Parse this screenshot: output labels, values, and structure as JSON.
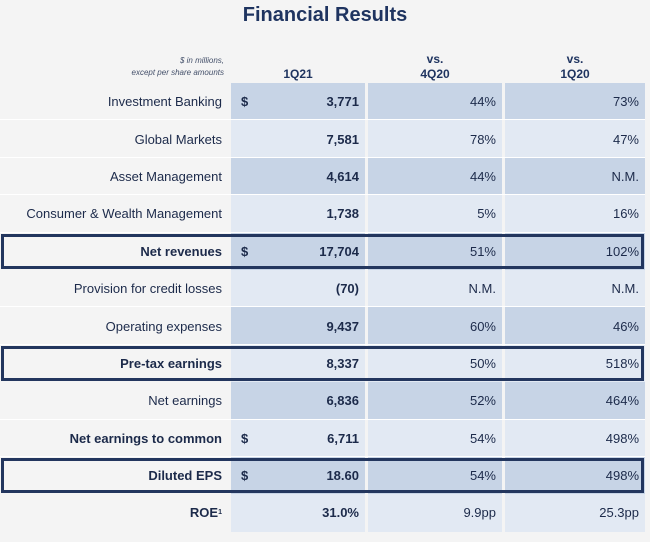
{
  "title": "Financial Results",
  "header": {
    "note_line1": "$ in millions,",
    "note_line2": "except per share amounts",
    "col1": "1Q21",
    "col2_line1": "vs.",
    "col2_line2": "4Q20",
    "col3_line1": "vs.",
    "col3_line2": "1Q20"
  },
  "rows": [
    {
      "label": "Investment Banking",
      "dollar": "$",
      "value": "3,771",
      "vs_4q20": "44%",
      "vs_1q20": "73%"
    },
    {
      "label": "Global Markets",
      "dollar": "",
      "value": "7,581",
      "vs_4q20": "78%",
      "vs_1q20": "47%"
    },
    {
      "label": "Asset Management",
      "dollar": "",
      "value": "4,614",
      "vs_4q20": "44%",
      "vs_1q20": "N.M."
    },
    {
      "label": "Consumer & Wealth Management",
      "dollar": "",
      "value": "1,738",
      "vs_4q20": "5%",
      "vs_1q20": "16%"
    },
    {
      "label": "Net revenues",
      "dollar": "$",
      "value": "17,704",
      "vs_4q20": "51%",
      "vs_1q20": "102%"
    },
    {
      "label": "Provision for credit losses",
      "dollar": "",
      "value": "(70)",
      "vs_4q20": "N.M.",
      "vs_1q20": "N.M."
    },
    {
      "label": "Operating expenses",
      "dollar": "",
      "value": "9,437",
      "vs_4q20": "60%",
      "vs_1q20": "46%"
    },
    {
      "label": "Pre-tax earnings",
      "dollar": "",
      "value": "8,337",
      "vs_4q20": "50%",
      "vs_1q20": "518%"
    },
    {
      "label": "Net earnings",
      "dollar": "",
      "value": "6,836",
      "vs_4q20": "52%",
      "vs_1q20": "464%"
    },
    {
      "label": "Net earnings to common",
      "dollar": "$",
      "value": "6,711",
      "vs_4q20": "54%",
      "vs_1q20": "498%"
    },
    {
      "label": "Diluted EPS",
      "dollar": "$",
      "value": "18.60",
      "vs_4q20": "54%",
      "vs_1q20": "498%"
    },
    {
      "label": "ROE",
      "footnote": "1",
      "dollar": "",
      "value": "31.0%",
      "vs_4q20": "9.9pp",
      "vs_1q20": "25.3pp"
    }
  ],
  "colors": {
    "dark_band": "#c7d4e6",
    "light_band": "#e2e9f3",
    "box_border": "#23365e",
    "title": "#1f3460"
  }
}
